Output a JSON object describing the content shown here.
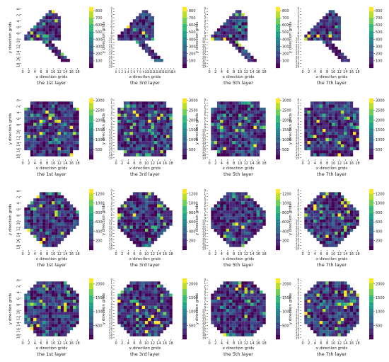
{
  "labels": {
    "xlabel": "x direction grids",
    "ylabel": "y direction grids",
    "layers": [
      "the 1st layer",
      "the 3rd layer",
      "the 5th layer",
      "the 7th layer"
    ]
  },
  "colormap": [
    "#440154",
    "#482878",
    "#3e4989",
    "#31688e",
    "#26828e",
    "#1f9e89",
    "#35b779",
    "#6ece58",
    "#b5de2b",
    "#fde725"
  ],
  "chart_data": {
    "type": "heatmap",
    "description_of_grid": "4 rows x 4 columns of heatmap panels, 20x20 grid each",
    "rows": [
      {
        "colorbar_ticks": [
          100,
          200,
          300,
          400,
          500,
          600,
          700,
          800
        ],
        "colorbar_range": [
          0,
          850
        ],
        "shape": "triangle",
        "panels": [
          {
            "title": "the 1st layer",
            "x_ticks": [
              "0",
              "2",
              "4",
              "6",
              "8",
              "10",
              "12",
              "14",
              "16",
              "18"
            ],
            "y_ticks": [
              "0",
              "2",
              "4",
              "6",
              "8",
              "10",
              "12",
              "14",
              "16",
              "18"
            ]
          },
          {
            "title": "the 3rd layer",
            "x_ticks": [
              "0",
              "1",
              "2",
              "3",
              "4",
              "5",
              "6",
              "7",
              "8",
              "9",
              "10",
              "11",
              "12",
              "13",
              "14",
              "15",
              "16",
              "17",
              "18",
              "19"
            ],
            "y_ticks": [
              "0",
              "1",
              "2",
              "3",
              "4",
              "5",
              "6",
              "7",
              "8",
              "9",
              "10",
              "11",
              "12",
              "13",
              "14",
              "15",
              "16",
              "17",
              "18",
              "19"
            ]
          },
          {
            "title": "the 5th layer",
            "x_ticks": [
              "0",
              "2",
              "4",
              "6",
              "8",
              "10",
              "12",
              "14",
              "16",
              "18"
            ],
            "y_ticks": [
              "0",
              "1",
              "2",
              "3",
              "4",
              "5",
              "6",
              "7",
              "8",
              "9",
              "10",
              "11",
              "12",
              "13",
              "14",
              "15",
              "16",
              "17",
              "18",
              "19"
            ]
          },
          {
            "title": "the 7th layer",
            "x_ticks": [
              "0",
              "2",
              "4",
              "6",
              "8",
              "10",
              "12",
              "14",
              "16",
              "18"
            ],
            "y_ticks": [
              "0",
              "1",
              "2",
              "3",
              "4",
              "5",
              "6",
              "7",
              "8",
              "9",
              "10",
              "11",
              "12",
              "13",
              "14",
              "15",
              "16",
              "17",
              "18",
              "19"
            ]
          }
        ]
      },
      {
        "colorbar_ticks": [
          500,
          1000,
          1500,
          2000,
          2500,
          3000
        ],
        "colorbar_range": [
          0,
          3100
        ],
        "shape": "square",
        "panels": [
          {
            "title": "the 1st layer",
            "x_ticks": [
              "0",
              "2",
              "4",
              "6",
              "8",
              "10",
              "12",
              "14",
              "16",
              "18"
            ],
            "y_ticks": [
              "0",
              "2",
              "4",
              "6",
              "8",
              "10",
              "12",
              "14",
              "16",
              "18"
            ]
          },
          {
            "title": "the 3rd layer",
            "x_ticks": [
              "0",
              "2",
              "4",
              "6",
              "8",
              "10",
              "12",
              "14",
              "16",
              "18"
            ],
            "y_ticks": [
              "0",
              "1",
              "2",
              "3",
              "4",
              "5",
              "6",
              "7",
              "8",
              "9",
              "10",
              "11",
              "12",
              "13",
              "14",
              "15",
              "16",
              "17",
              "18",
              "19"
            ]
          },
          {
            "title": "the 5th layer",
            "x_ticks": [
              "0",
              "2",
              "4",
              "6",
              "8",
              "10",
              "12",
              "14",
              "16",
              "18"
            ],
            "y_ticks": [
              "0",
              "1",
              "2",
              "3",
              "4",
              "5",
              "6",
              "7",
              "8",
              "9",
              "10",
              "11",
              "12",
              "13",
              "14",
              "15",
              "16",
              "17",
              "18",
              "19"
            ]
          },
          {
            "title": "the 7th layer",
            "x_ticks": [
              "0",
              "2",
              "4",
              "6",
              "8",
              "10",
              "12",
              "14",
              "16",
              "18"
            ],
            "y_ticks": [
              "0",
              "1",
              "2",
              "3",
              "4",
              "5",
              "6",
              "7",
              "8",
              "9",
              "10",
              "11",
              "12",
              "13",
              "14",
              "15",
              "16",
              "17",
              "18",
              "19"
            ]
          }
        ]
      },
      {
        "colorbar_ticks": [
          200,
          400,
          600,
          800,
          1000,
          1200
        ],
        "colorbar_range": [
          0,
          1300
        ],
        "shape": "diamond",
        "panels": [
          {
            "title": "the 1st layer",
            "x_ticks": [
              "0",
              "2",
              "4",
              "6",
              "8",
              "10",
              "12",
              "14",
              "16",
              "18"
            ],
            "y_ticks": [
              "0",
              "2",
              "4",
              "6",
              "8",
              "10",
              "12",
              "14",
              "16",
              "18"
            ]
          },
          {
            "title": "the 3rd layer",
            "x_ticks": [
              "0",
              "2",
              "4",
              "6",
              "8",
              "10",
              "12",
              "14",
              "16",
              "18"
            ],
            "y_ticks": [
              "0",
              "1",
              "2",
              "3",
              "4",
              "5",
              "6",
              "7",
              "8",
              "9",
              "10",
              "11",
              "12",
              "13",
              "14",
              "15",
              "16",
              "17",
              "18",
              "19"
            ]
          },
          {
            "title": "the 5th layer",
            "x_ticks": [
              "0",
              "2",
              "4",
              "6",
              "8",
              "10",
              "12",
              "14",
              "16",
              "18"
            ],
            "y_ticks": [
              "0",
              "1",
              "2",
              "3",
              "4",
              "5",
              "6",
              "7",
              "8",
              "9",
              "10",
              "11",
              "12",
              "13",
              "14",
              "15",
              "16",
              "17",
              "18",
              "19"
            ]
          },
          {
            "title": "the 7th layer",
            "x_ticks": [
              "0",
              "2",
              "4",
              "6",
              "8",
              "10",
              "12",
              "14",
              "16",
              "18"
            ],
            "y_ticks": [
              "0",
              "1",
              "2",
              "3",
              "4",
              "5",
              "6",
              "7",
              "8",
              "9",
              "10",
              "11",
              "12",
              "13",
              "14",
              "15",
              "16",
              "17",
              "18",
              "19"
            ]
          }
        ]
      },
      {
        "colorbar_ticks": [
          500,
          1000,
          1500,
          2000
        ],
        "colorbar_range": [
          0,
          2200
        ],
        "shape": "octagon",
        "panels": [
          {
            "title": "the 1st layer",
            "x_ticks": [
              "0",
              "2",
              "4",
              "6",
              "8",
              "10",
              "12",
              "14",
              "16",
              "18"
            ],
            "y_ticks": [
              "0",
              "2",
              "4",
              "6",
              "8",
              "10",
              "12",
              "14",
              "16",
              "18"
            ]
          },
          {
            "title": "the 3rd layer",
            "x_ticks": [
              "0",
              "2",
              "4",
              "6",
              "8",
              "10",
              "12",
              "14",
              "16",
              "18"
            ],
            "y_ticks": [
              "0",
              "1",
              "2",
              "3",
              "4",
              "5",
              "6",
              "7",
              "8",
              "9",
              "10",
              "11",
              "12",
              "13",
              "14",
              "15",
              "16",
              "17",
              "18",
              "19"
            ]
          },
          {
            "title": "the 5th layer",
            "x_ticks": [
              "0",
              "2",
              "4",
              "6",
              "8",
              "10",
              "12",
              "14",
              "16",
              "18"
            ],
            "y_ticks": [
              "0",
              "1",
              "2",
              "3",
              "4",
              "5",
              "6",
              "7",
              "8",
              "9",
              "10",
              "11",
              "12",
              "13",
              "14",
              "15",
              "16",
              "17",
              "18",
              "19"
            ]
          },
          {
            "title": "the 7th layer",
            "x_ticks": [
              "0",
              "2",
              "4",
              "6",
              "8",
              "10",
              "12",
              "14",
              "16",
              "18"
            ],
            "y_ticks": [
              "0",
              "1",
              "2",
              "3",
              "4",
              "5",
              "6",
              "7",
              "8",
              "9",
              "10",
              "11",
              "12",
              "13",
              "14",
              "15",
              "16",
              "17",
              "18",
              "19"
            ]
          }
        ]
      }
    ]
  }
}
